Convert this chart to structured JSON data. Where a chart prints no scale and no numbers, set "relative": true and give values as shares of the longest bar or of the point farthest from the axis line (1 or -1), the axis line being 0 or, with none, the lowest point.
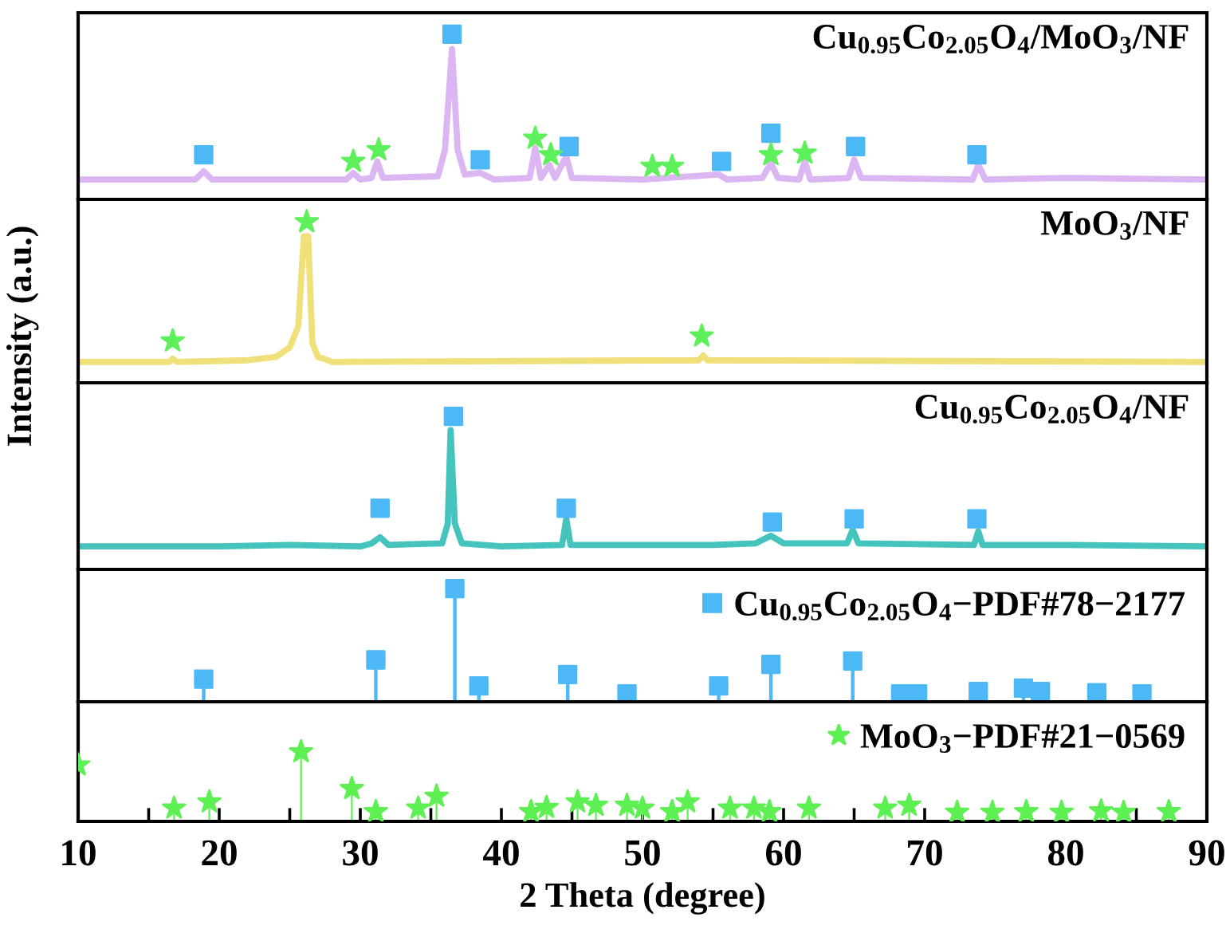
{
  "chart_data": [
    {
      "type": "line",
      "relative": true,
      "title": "Cu$_{0.95}$Co$_{2.05}$O$_{4}$/MoO$_{3}$/NF",
      "xlim": [
        10,
        90
      ],
      "tick_labels": false,
      "grid": false,
      "legend": false,
      "series": [
        {
          "type": "line",
          "color": "#dcb6f2",
          "x": [
            10,
            15,
            18.3,
            18.9,
            19.5,
            29,
            29.5,
            30,
            30.8,
            31.2,
            31.6,
            35.5,
            36.0,
            36.5,
            36.9,
            37.4,
            38.5,
            39.5,
            42.0,
            42.4,
            42.8,
            43.4,
            43.8,
            44.6,
            45.0,
            50,
            55.4,
            56,
            58.5,
            59.1,
            59.6,
            61.1,
            61.5,
            61.9,
            64.6,
            65.0,
            65.5,
            73.4,
            73.8,
            74.3,
            80,
            90
          ],
          "values": [
            0.12,
            0.12,
            0.12,
            0.17,
            0.12,
            0.12,
            0.16,
            0.12,
            0.13,
            0.23,
            0.13,
            0.14,
            0.3,
            0.91,
            0.3,
            0.15,
            0.16,
            0.12,
            0.13,
            0.31,
            0.13,
            0.21,
            0.13,
            0.26,
            0.13,
            0.12,
            0.15,
            0.12,
            0.13,
            0.22,
            0.13,
            0.12,
            0.23,
            0.12,
            0.13,
            0.24,
            0.13,
            0.12,
            0.21,
            0.12,
            0.13,
            0.12
          ]
        },
        {
          "type": "scatter",
          "marker": "square",
          "color": "#4cb8f5",
          "x": [
            18.9,
            36.5,
            38.5,
            44.8,
            55.6,
            59.1,
            65.1,
            73.7
          ],
          "values": [
            0.27,
            1.0,
            0.24,
            0.32,
            0.23,
            0.4,
            0.32,
            0.27
          ]
        },
        {
          "type": "scatter",
          "marker": "star",
          "color": "#5ef05a",
          "x": [
            29.5,
            31.3,
            42.4,
            43.5,
            50.7,
            52.1,
            59.1,
            61.5
          ],
          "values": [
            0.23,
            0.3,
            0.37,
            0.27,
            0.2,
            0.2,
            0.27,
            0.28
          ]
        }
      ]
    },
    {
      "type": "line",
      "relative": true,
      "title": "MoO$_{3}$/NF",
      "xlim": [
        10,
        90
      ],
      "tick_labels": false,
      "grid": false,
      "legend": false,
      "series": [
        {
          "type": "line",
          "color": "#efe07a",
          "x": [
            10,
            16.5,
            16.7,
            17,
            22,
            24,
            25,
            25.6,
            26.0,
            26.3,
            26.6,
            27,
            27.4,
            28,
            54.0,
            54.3,
            54.6,
            90
          ],
          "values": [
            0.13,
            0.13,
            0.15,
            0.13,
            0.14,
            0.16,
            0.22,
            0.35,
            0.91,
            0.91,
            0.25,
            0.16,
            0.15,
            0.13,
            0.14,
            0.17,
            0.14,
            0.13
          ]
        },
        {
          "type": "scatter",
          "marker": "star",
          "color": "#5ef05a",
          "x": [
            16.7,
            26.2,
            54.2
          ],
          "values": [
            0.26,
            1.0,
            0.29
          ]
        }
      ]
    },
    {
      "type": "line",
      "relative": true,
      "title": "Cu$_{0.95}$Co$_{2.05}$O$_{4}$/NF",
      "ylabel": "Intensity (a.u.)",
      "xlim": [
        10,
        90
      ],
      "tick_labels": false,
      "grid": false,
      "legend": false,
      "series": [
        {
          "type": "line",
          "color": "#45c4be",
          "x": [
            10,
            20,
            25,
            30,
            30.8,
            31.4,
            32,
            35.8,
            36.2,
            36.4,
            36.7,
            37.2,
            40,
            44.3,
            44.6,
            44.9,
            50,
            55,
            58,
            59.1,
            60,
            64.5,
            64.9,
            65.3,
            73.5,
            73.8,
            74.1,
            80,
            90
          ],
          "values": [
            0.15,
            0.15,
            0.16,
            0.15,
            0.17,
            0.21,
            0.16,
            0.17,
            0.3,
            0.91,
            0.3,
            0.17,
            0.15,
            0.16,
            0.33,
            0.16,
            0.16,
            0.16,
            0.17,
            0.22,
            0.17,
            0.17,
            0.26,
            0.17,
            0.16,
            0.25,
            0.16,
            0.16,
            0.15
          ]
        },
        {
          "type": "scatter",
          "marker": "square",
          "color": "#4cb8f5",
          "x": [
            31.4,
            36.6,
            44.6,
            59.2,
            65.0,
            73.7
          ],
          "values": [
            0.4,
            1.0,
            0.4,
            0.31,
            0.33,
            0.33
          ]
        }
      ]
    },
    {
      "type": "lollipop",
      "relative": true,
      "xlim": [
        10,
        90
      ],
      "tick_labels": false,
      "grid": false,
      "legend": "top right",
      "series": [
        {
          "name": "Cu$_{0.95}$Co$_{2.05}$O$_{4}$−PDF#78−2177",
          "marker": "square",
          "color": "#4cb8f5",
          "x": [
            18.9,
            31.1,
            36.7,
            38.4,
            44.7,
            48.9,
            55.4,
            59.1,
            64.9,
            68.3,
            69.5,
            73.8,
            77.0,
            78.2,
            82.2,
            85.4
          ],
          "values": [
            0.2,
            0.37,
            1.0,
            0.14,
            0.24,
            0.07,
            0.14,
            0.33,
            0.36,
            0.07,
            0.07,
            0.09,
            0.12,
            0.09,
            0.08,
            0.07
          ]
        }
      ]
    },
    {
      "type": "lollipop",
      "relative": true,
      "xlabel": "2 Theta (degree)",
      "xlim": [
        10,
        90
      ],
      "xticks": [
        10,
        {
          "value": 15,
          "label": null
        },
        20,
        {
          "value": 25,
          "label": null
        },
        30,
        {
          "value": 35,
          "label": null
        },
        40,
        {
          "value": 45,
          "label": null
        },
        50,
        {
          "value": 55,
          "label": null
        },
        60,
        {
          "value": 65,
          "label": null
        },
        70,
        {
          "value": 75,
          "label": null
        },
        80,
        {
          "value": 85,
          "label": null
        },
        90
      ],
      "tick_labels": "x",
      "grid": false,
      "legend": "top right",
      "series": [
        {
          "name": "MoO$_{3}$−PDF#21−0569",
          "marker": "star",
          "color": "#5ef053",
          "x": [
            10.0,
            16.8,
            19.3,
            25.8,
            29.4,
            31.1,
            34.1,
            35.4,
            42.1,
            43.2,
            45.4,
            46.7,
            48.9,
            50.0,
            52.1,
            53.2,
            56.2,
            57.9,
            59.0,
            61.8,
            67.2,
            68.9,
            72.3,
            74.8,
            77.2,
            79.7,
            82.5,
            84.1,
            87.3
          ],
          "values": [
            0.81,
            0.19,
            0.28,
            1.0,
            0.47,
            0.14,
            0.19,
            0.36,
            0.14,
            0.2,
            0.28,
            0.23,
            0.23,
            0.19,
            0.14,
            0.28,
            0.19,
            0.19,
            0.14,
            0.19,
            0.19,
            0.23,
            0.13,
            0.13,
            0.14,
            0.13,
            0.15,
            0.13,
            0.14
          ]
        }
      ]
    }
  ]
}
